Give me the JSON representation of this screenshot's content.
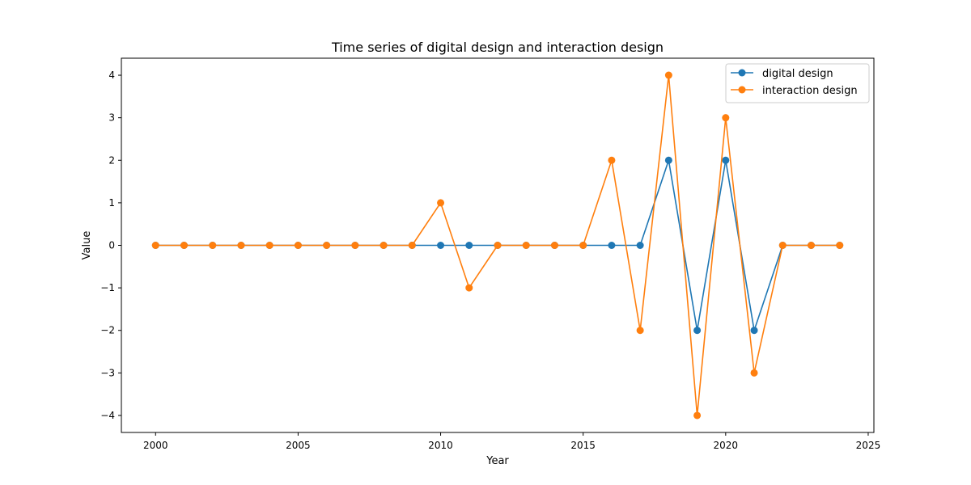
{
  "chart_data": {
    "type": "line",
    "title": "Time series of digital design and interaction design",
    "xlabel": "Year",
    "ylabel": "Value",
    "x": [
      2000,
      2001,
      2002,
      2003,
      2004,
      2005,
      2006,
      2007,
      2008,
      2009,
      2010,
      2011,
      2012,
      2013,
      2014,
      2015,
      2016,
      2017,
      2018,
      2019,
      2020,
      2021,
      2022,
      2023,
      2024
    ],
    "xlim": [
      1998.8,
      2025.2
    ],
    "ylim": [
      -4.4,
      4.4
    ],
    "xticks": [
      2000,
      2005,
      2010,
      2015,
      2020,
      2025
    ],
    "yticks": [
      -4,
      -3,
      -2,
      -1,
      0,
      1,
      2,
      3,
      4
    ],
    "grid": false,
    "legend_position": "top-right",
    "series": [
      {
        "name": "digital design",
        "color": "#1f77b4",
        "values": [
          0,
          0,
          0,
          0,
          0,
          0,
          0,
          0,
          0,
          0,
          0,
          0,
          0,
          0,
          0,
          0,
          0,
          0,
          2,
          -2,
          2,
          -2,
          0,
          0,
          0
        ]
      },
      {
        "name": "interaction design",
        "color": "#ff7f0e",
        "values": [
          0,
          0,
          0,
          0,
          0,
          0,
          0,
          0,
          0,
          0,
          1,
          -1,
          0,
          0,
          0,
          0,
          2,
          -2,
          4,
          -4,
          3,
          -3,
          0,
          0,
          0
        ]
      }
    ]
  }
}
